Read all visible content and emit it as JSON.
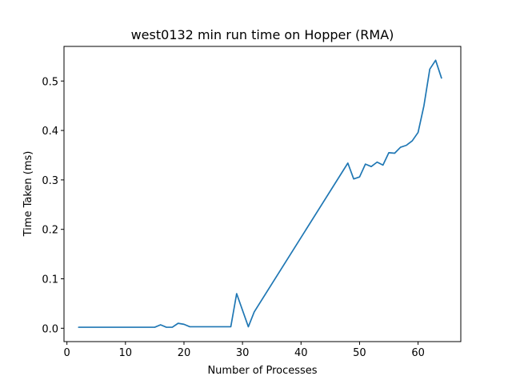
{
  "chart_data": {
    "type": "line",
    "title": "west0132 min run time on Hopper (RMA)",
    "xlabel": "Number of Processes",
    "ylabel": "Time Taken (ms)",
    "xlim": [
      -0.5,
      67.3
    ],
    "ylim": [
      -0.027,
      0.57
    ],
    "xticks": [
      0,
      10,
      20,
      30,
      40,
      50,
      60
    ],
    "yticks": [
      0.0,
      0.1,
      0.2,
      0.3,
      0.4,
      0.5
    ],
    "ytick_labels": [
      "0.0",
      "0.1",
      "0.2",
      "0.3",
      "0.4",
      "0.5"
    ],
    "grid": false,
    "line_color": "#1f77b4",
    "series": [
      {
        "x": [
          2,
          15,
          16,
          17,
          18,
          19,
          20,
          21,
          28,
          29,
          31,
          32,
          48,
          49,
          50,
          51,
          52,
          53,
          54,
          55,
          56,
          57,
          58,
          59,
          60,
          61,
          62,
          63,
          64
        ],
        "values": [
          0.002,
          0.002,
          0.007,
          0.002,
          0.002,
          0.01,
          0.008,
          0.003,
          0.003,
          0.07,
          0.003,
          0.033,
          0.334,
          0.302,
          0.306,
          0.332,
          0.327,
          0.336,
          0.33,
          0.355,
          0.354,
          0.366,
          0.37,
          0.379,
          0.396,
          0.45,
          0.524,
          0.542,
          0.506
        ]
      }
    ]
  }
}
